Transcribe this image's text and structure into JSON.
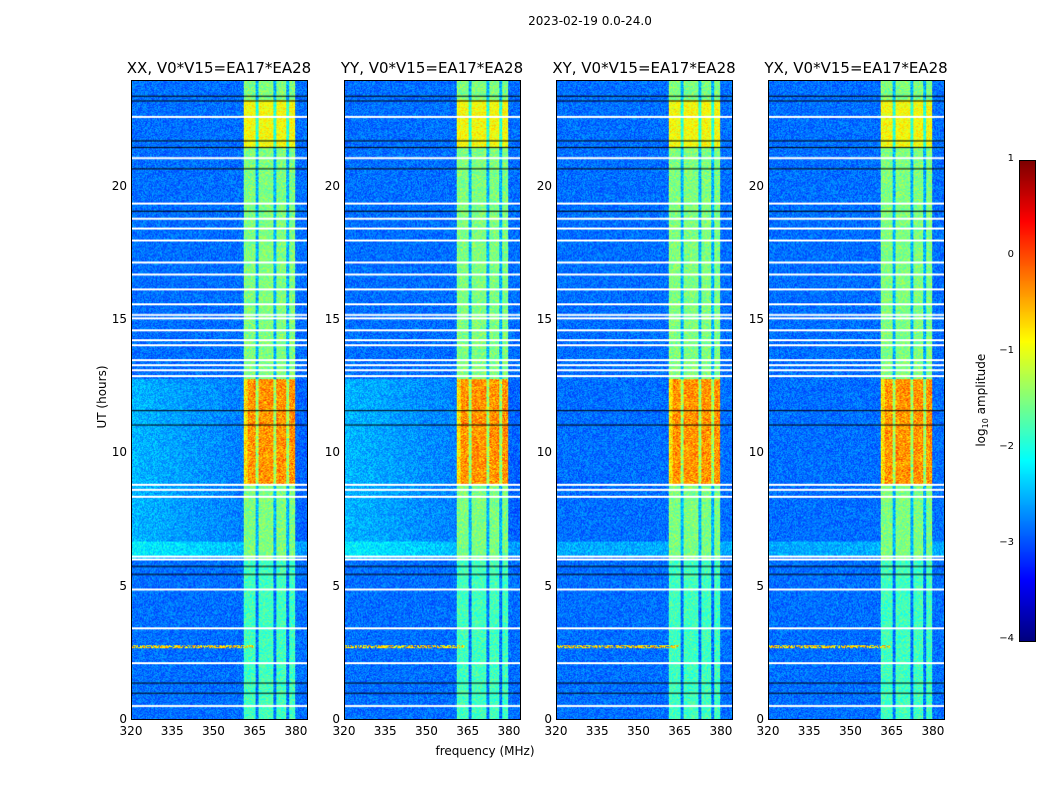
{
  "chart_data": {
    "type": "heatmap",
    "title": "2023-02-19 0.0-24.0",
    "xlabel": "frequency (MHz)",
    "ylabel": "UT (hours)",
    "xlim": [
      320,
      384.4
    ],
    "ylim": [
      0,
      24
    ],
    "x_ticks": [
      "320",
      "335",
      "350",
      "365",
      "380"
    ],
    "x_tick_values": [
      320,
      335,
      350,
      365,
      380
    ],
    "y_ticks": [
      "0",
      "5",
      "10",
      "15",
      "20"
    ],
    "y_tick_values": [
      0,
      5,
      10,
      15,
      20
    ],
    "panels": [
      {
        "title": "XX, V0*V15=EA17*EA28",
        "diffuse_background": true
      },
      {
        "title": "YY, V0*V15=EA17*EA28",
        "diffuse_background": true
      },
      {
        "title": "XY, V0*V15=EA17*EA28",
        "diffuse_background": false
      },
      {
        "title": "YX, V0*V15=EA17*EA28",
        "diffuse_background": false
      }
    ],
    "bright_band_mhz": [
      361,
      380
    ],
    "band_gaps_mhz": [
      365.8,
      372.4,
      377.2
    ],
    "flagged_white_ut": [
      0.49,
      2.1,
      3.41,
      4.87,
      6.0,
      6.11,
      8.36,
      8.62,
      8.81,
      12.9,
      13.12,
      13.31,
      13.5,
      14.06,
      14.25,
      14.62,
      15.07,
      15.2,
      15.6,
      16.16,
      16.72,
      17.17,
      18.0,
      18.45,
      18.82,
      19.39,
      21.1,
      22.65
    ],
    "flagged_black_ut": [
      0.97,
      1.35,
      5.44,
      5.74,
      11.06,
      11.6,
      19.1,
      20.7,
      21.5,
      21.75,
      23.25,
      23.43
    ],
    "colorbar": {
      "label": "log10 amplitude",
      "label_main": "log",
      "label_sub": "10",
      "label_rest": " amplitude",
      "range": [
        -4,
        1
      ],
      "ticks": [
        "1",
        "0",
        "−1",
        "−2",
        "−3",
        "−4"
      ],
      "tick_values": [
        1,
        0,
        -1,
        -2,
        -3,
        -4
      ],
      "colormap": "jet"
    }
  }
}
